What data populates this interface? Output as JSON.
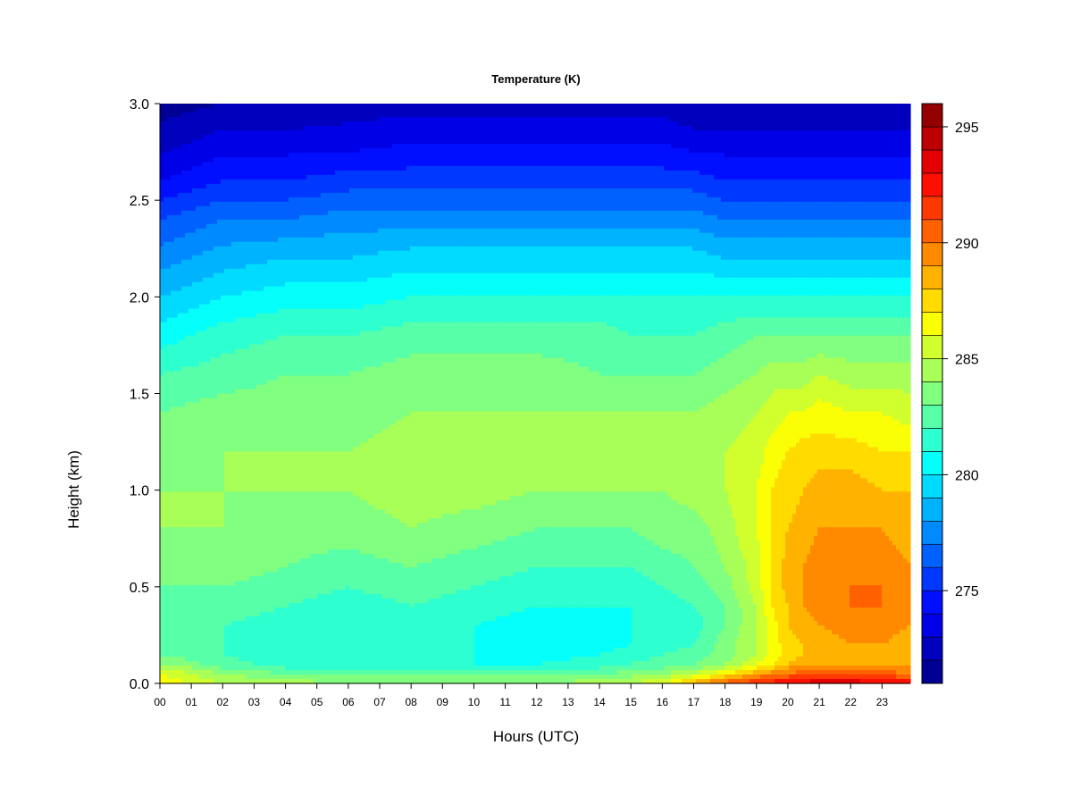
{
  "chart_data": {
    "type": "heatmap",
    "title": "Temperature (K)",
    "xlabel": "Hours (UTC)",
    "ylabel": "Height (km)",
    "x_unit": "hours UTC",
    "y_unit": "km",
    "xlim": [
      0,
      23.9
    ],
    "ylim": [
      0.0,
      3.0
    ],
    "x_ticks": [
      "00",
      "01",
      "02",
      "03",
      "04",
      "05",
      "06",
      "07",
      "08",
      "09",
      "10",
      "11",
      "12",
      "13",
      "14",
      "15",
      "16",
      "17",
      "18",
      "19",
      "20",
      "21",
      "22",
      "23"
    ],
    "y_ticks": [
      "0.0",
      "0.5",
      "1.0",
      "1.5",
      "2.0",
      "2.5",
      "3.0"
    ],
    "colorbar": {
      "min": 271,
      "max": 296,
      "step": 1,
      "ticks": [
        "275",
        "280",
        "285",
        "290",
        "295"
      ],
      "colormap": "jet"
    },
    "x": [
      0,
      2,
      4,
      6,
      8,
      10,
      12,
      14,
      15,
      16,
      17,
      18,
      19,
      19.5,
      20,
      20.5,
      21,
      22,
      23,
      23.9
    ],
    "y": [
      0.0,
      0.02,
      0.05,
      0.08,
      0.1,
      0.15,
      0.2,
      0.3,
      0.4,
      0.5,
      0.6,
      0.8,
      1.0,
      1.2,
      1.4,
      1.6,
      1.8,
      2.0,
      2.2,
      2.4,
      2.6,
      2.8,
      3.0
    ],
    "z": [
      [
        287.0,
        285.0,
        284.5,
        284.0,
        284.0,
        284.0,
        284.0,
        284.5,
        285.0,
        286.0,
        289.0,
        291.0,
        292.0,
        292.5,
        293.0,
        293.5,
        294.0,
        294.0,
        293.5,
        293.0
      ],
      [
        286.5,
        284.5,
        284.0,
        283.5,
        283.5,
        283.5,
        283.5,
        284.0,
        284.5,
        285.0,
        287.0,
        289.0,
        291.0,
        291.5,
        292.0,
        292.5,
        292.5,
        292.5,
        292.0,
        291.5
      ],
      [
        286.0,
        284.0,
        283.0,
        282.5,
        282.5,
        282.5,
        282.5,
        283.0,
        283.5,
        284.0,
        285.0,
        287.0,
        288.5,
        289.5,
        290.0,
        290.5,
        291.0,
        291.0,
        290.5,
        290.0
      ],
      [
        285.0,
        283.0,
        282.0,
        281.5,
        281.5,
        281.5,
        281.5,
        282.0,
        282.5,
        283.0,
        283.5,
        285.0,
        287.0,
        288.0,
        289.0,
        289.5,
        289.5,
        289.5,
        289.5,
        289.0
      ],
      [
        284.0,
        282.5,
        281.5,
        281.0,
        281.0,
        281.0,
        281.0,
        281.5,
        282.0,
        282.5,
        283.0,
        284.0,
        286.0,
        287.0,
        288.0,
        288.5,
        289.0,
        289.0,
        289.0,
        288.5
      ],
      [
        283.0,
        282.0,
        281.0,
        281.0,
        281.0,
        281.0,
        280.5,
        281.0,
        281.5,
        282.0,
        282.5,
        283.5,
        285.0,
        286.5,
        287.5,
        288.0,
        288.5,
        288.5,
        288.5,
        288.0
      ],
      [
        282.5,
        282.0,
        281.5,
        281.0,
        281.0,
        281.0,
        280.5,
        280.5,
        281.0,
        281.5,
        282.0,
        283.5,
        285.0,
        286.5,
        287.5,
        288.0,
        288.5,
        289.0,
        289.0,
        288.5
      ],
      [
        282.5,
        282.0,
        281.5,
        281.0,
        281.5,
        281.0,
        280.5,
        280.5,
        281.0,
        281.0,
        281.5,
        283.0,
        285.0,
        286.5,
        288.0,
        288.5,
        289.0,
        289.5,
        289.5,
        289.0
      ],
      [
        283.0,
        282.5,
        282.0,
        281.5,
        282.0,
        281.5,
        281.0,
        281.0,
        281.0,
        281.5,
        282.0,
        283.0,
        285.0,
        287.0,
        288.0,
        289.0,
        289.5,
        290.0,
        290.0,
        289.5
      ],
      [
        283.0,
        283.0,
        282.5,
        282.0,
        282.5,
        282.0,
        281.5,
        281.5,
        281.5,
        282.0,
        282.5,
        283.5,
        285.5,
        287.0,
        288.5,
        289.0,
        289.5,
        290.0,
        290.0,
        289.5
      ],
      [
        283.5,
        283.5,
        283.0,
        282.5,
        283.0,
        282.5,
        282.0,
        282.0,
        282.0,
        282.5,
        283.0,
        284.0,
        285.5,
        287.0,
        288.5,
        289.0,
        289.5,
        290.0,
        289.5,
        289.0
      ],
      [
        284.0,
        284.0,
        283.5,
        283.5,
        284.0,
        283.5,
        283.0,
        283.0,
        283.0,
        283.5,
        283.5,
        284.5,
        286.0,
        287.0,
        288.0,
        288.5,
        289.0,
        289.0,
        289.0,
        288.5
      ],
      [
        284.0,
        284.0,
        284.0,
        284.0,
        284.5,
        284.5,
        284.0,
        284.0,
        284.0,
        284.0,
        284.5,
        285.0,
        286.0,
        287.0,
        287.5,
        288.0,
        288.5,
        288.5,
        288.0,
        288.0
      ],
      [
        283.5,
        284.0,
        284.0,
        284.0,
        284.5,
        284.5,
        284.5,
        284.0,
        284.0,
        284.5,
        284.5,
        285.0,
        285.5,
        286.5,
        287.0,
        287.5,
        287.5,
        287.5,
        287.0,
        287.0
      ],
      [
        283.0,
        283.5,
        283.5,
        283.5,
        284.0,
        284.0,
        284.0,
        284.0,
        284.0,
        284.0,
        284.0,
        284.5,
        285.0,
        285.5,
        286.0,
        286.0,
        286.5,
        286.0,
        286.0,
        285.5
      ],
      [
        282.0,
        282.5,
        283.0,
        283.0,
        283.5,
        283.5,
        283.5,
        283.0,
        283.0,
        283.0,
        283.0,
        283.5,
        284.0,
        284.5,
        284.5,
        284.5,
        285.0,
        284.5,
        284.5,
        284.5
      ],
      [
        280.5,
        281.5,
        282.0,
        282.0,
        282.5,
        282.5,
        282.5,
        282.5,
        282.0,
        282.0,
        282.0,
        282.5,
        283.0,
        283.0,
        283.0,
        283.0,
        283.0,
        283.0,
        283.0,
        283.0
      ],
      [
        279.0,
        280.0,
        280.5,
        280.5,
        281.0,
        281.0,
        281.0,
        281.0,
        281.0,
        281.0,
        281.0,
        281.0,
        281.0,
        281.0,
        281.0,
        281.0,
        281.0,
        281.0,
        281.0,
        281.0
      ],
      [
        277.5,
        278.5,
        279.0,
        279.0,
        279.5,
        279.5,
        279.5,
        279.5,
        279.5,
        279.5,
        279.5,
        279.0,
        279.0,
        279.0,
        279.0,
        279.0,
        279.0,
        279.0,
        279.0,
        279.0
      ],
      [
        276.0,
        277.0,
        277.0,
        277.5,
        277.5,
        277.5,
        277.5,
        277.5,
        277.5,
        277.5,
        277.5,
        277.0,
        277.0,
        277.0,
        277.0,
        277.0,
        277.0,
        277.0,
        277.0,
        277.0
      ],
      [
        274.0,
        275.0,
        275.0,
        275.5,
        275.5,
        275.5,
        275.5,
        275.5,
        275.5,
        275.5,
        275.5,
        275.0,
        275.0,
        275.0,
        275.0,
        275.0,
        275.0,
        275.0,
        275.0,
        275.0
      ],
      [
        272.5,
        273.5,
        273.5,
        273.5,
        274.0,
        274.0,
        274.0,
        274.0,
        274.0,
        274.0,
        273.5,
        273.5,
        273.5,
        273.5,
        273.5,
        273.5,
        273.5,
        273.5,
        273.5,
        273.5
      ],
      [
        271.5,
        272.0,
        272.0,
        272.5,
        272.5,
        272.5,
        272.5,
        272.5,
        272.5,
        272.5,
        272.0,
        272.0,
        272.0,
        272.0,
        272.0,
        272.0,
        272.0,
        272.0,
        272.0,
        272.0
      ]
    ]
  }
}
